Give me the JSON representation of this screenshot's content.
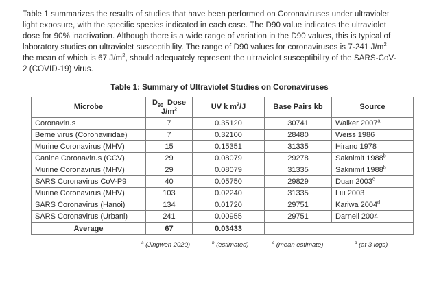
{
  "page": {
    "background_color": "#ffffff",
    "text_color": "#2b2b2b",
    "border_color": "#7e7e7e"
  },
  "paragraph": {
    "lines": [
      [
        {
          "text": "Table 1 summarizes the results of studies that have been performed on Coronaviruses under ultraviolet"
        }
      ],
      [
        {
          "text": "light exposure, with the specific species indicated in each case. The D90 value indicates the ultraviolet"
        }
      ],
      [
        {
          "text": "dose for 90% inactivation. Although there is a wide range of variation in the D90 values, this is typical of"
        }
      ],
      [
        {
          "text": "laboratory studies on ultraviolet susceptibility. The range of D90 values for coronaviruses is 7-241 J/m"
        },
        {
          "sup": "2"
        }
      ],
      [
        {
          "text": "the mean of which is 67 J/m"
        },
        {
          "sup": "2"
        },
        {
          "text": ", should adequately represent the ultraviolet susceptibility of the SARS-CoV-"
        }
      ],
      [
        {
          "text": "2 (COVID-19) virus."
        }
      ]
    ]
  },
  "table": {
    "title": "Table 1: Summary of Ultraviolet Studies on Coronaviruses",
    "headers": [
      {
        "name": "microbe",
        "lines": [
          [
            {
              "text": "Microbe"
            }
          ]
        ]
      },
      {
        "name": "d90-dose",
        "lines": [
          [
            {
              "text": "D"
            },
            {
              "sub": "90"
            },
            {
              "text": "  Dose"
            }
          ],
          [
            {
              "text": "J/m"
            },
            {
              "sup": "2"
            }
          ]
        ]
      },
      {
        "name": "uv-k",
        "lines": [
          [
            {
              "text": "UV k m"
            },
            {
              "sup": "2"
            },
            {
              "text": "/J"
            }
          ]
        ]
      },
      {
        "name": "base-pairs",
        "lines": [
          [
            {
              "text": "Base Pairs kb"
            }
          ]
        ]
      },
      {
        "name": "source",
        "lines": [
          [
            {
              "text": "Source"
            }
          ]
        ]
      }
    ],
    "rows": [
      {
        "microbe": "Coronavirus",
        "dose": "7",
        "uv_k": "0.35120",
        "base_pairs": "30741",
        "source": "Walker 2007",
        "source_sup": "a"
      },
      {
        "microbe": "Berne virus (Coronaviridae)",
        "dose": "7",
        "uv_k": "0.32100",
        "base_pairs": "28480",
        "source": "Weiss 1986",
        "source_sup": ""
      },
      {
        "microbe": "Murine Coronavirus (MHV)",
        "dose": "15",
        "uv_k": "0.15351",
        "base_pairs": "31335",
        "source": "Hirano 1978",
        "source_sup": ""
      },
      {
        "microbe": "Canine Coronavirus (CCV)",
        "dose": "29",
        "uv_k": "0.08079",
        "base_pairs": "29278",
        "source": "Saknimit 1988",
        "source_sup": "b"
      },
      {
        "microbe": "Murine Coronavirus (MHV)",
        "dose": "29",
        "uv_k": "0.08079",
        "base_pairs": "31335",
        "source": "Saknimit 1988",
        "source_sup": "b"
      },
      {
        "microbe": "SARS Coronavirus CoV-P9",
        "dose": "40",
        "uv_k": "0.05750",
        "base_pairs": "29829",
        "source": "Duan 2003",
        "source_sup": "c"
      },
      {
        "microbe": "Murine Coronavirus (MHV)",
        "dose": "103",
        "uv_k": "0.02240",
        "base_pairs": "31335",
        "source": "Liu 2003",
        "source_sup": ""
      },
      {
        "microbe": "SARS Coronavirus (Hanoi)",
        "dose": "134",
        "uv_k": "0.01720",
        "base_pairs": "29751",
        "source": "Kariwa 2004",
        "source_sup": "d"
      },
      {
        "microbe": "SARS Coronavirus (Urbani)",
        "dose": "241",
        "uv_k": "0.00955",
        "base_pairs": "29751",
        "source": "Darnell 2004",
        "source_sup": ""
      }
    ],
    "average_row": {
      "label": "Average",
      "dose": "67",
      "uv_k": "0.03433"
    }
  },
  "footnotes": [
    {
      "sup": "a",
      "text": " (Jingwen 2020)"
    },
    {
      "sup": "b",
      "text": " (estimated)"
    },
    {
      "sup": "c",
      "text": " (mean estimate)"
    },
    {
      "sup": "d",
      "text": " (at 3 logs)"
    }
  ]
}
